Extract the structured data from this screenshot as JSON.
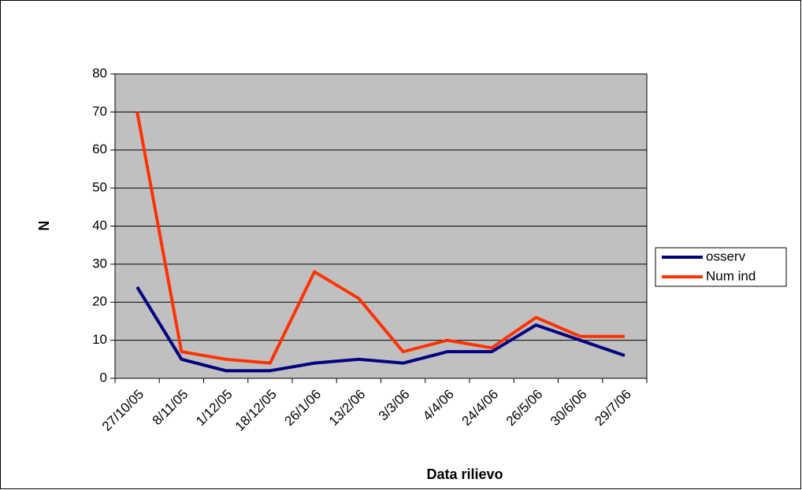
{
  "chart_data": {
    "type": "line",
    "x_label": "Data rilievo",
    "y_label": "N",
    "categories": [
      "27/10/05",
      "8/11/05",
      "1/12/05",
      "18/12/05",
      "26/1/06",
      "13/2/06",
      "3/3/06",
      "4/4/06",
      "24/4/06",
      "26/5/06",
      "30/6/06",
      "29/7/06"
    ],
    "series": [
      {
        "name": "osserv",
        "color": "#000080",
        "values": [
          24,
          5,
          2,
          2,
          4,
          5,
          4,
          7,
          7,
          14,
          10,
          6
        ]
      },
      {
        "name": "Num ind",
        "color": "#ff3300",
        "values": [
          70,
          7,
          5,
          4,
          28,
          21,
          7,
          10,
          8,
          16,
          11,
          11
        ]
      }
    ],
    "ylim": [
      0,
      80
    ],
    "yticks": [
      0,
      10,
      20,
      30,
      40,
      50,
      60,
      70,
      80
    ],
    "grid": true,
    "legend": "right"
  }
}
